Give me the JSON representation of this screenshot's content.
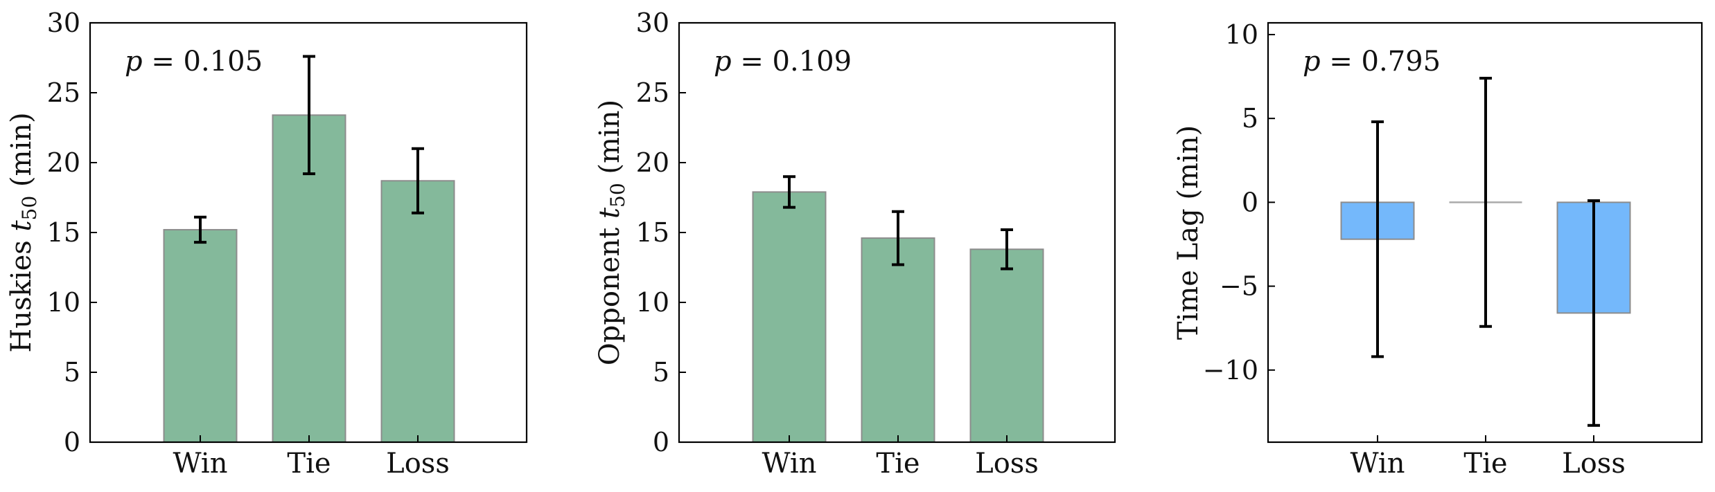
{
  "chart_data": [
    {
      "type": "bar",
      "categories": [
        "Win",
        "Tie",
        "Loss"
      ],
      "values": [
        15.2,
        23.4,
        18.7
      ],
      "errors": [
        0.9,
        4.2,
        2.3
      ],
      "ylabel": "Huskies t50 (min)",
      "ylabel_main": "Huskies ",
      "ylabel_var": "t",
      "ylabel_sub": "50",
      "ylabel_unit": " (min)",
      "annotation": {
        "p_text": "p",
        "eq": " = 0.105"
      },
      "ylim": [
        0,
        30
      ],
      "yticks": [
        0,
        5,
        10,
        15,
        20,
        25,
        30
      ],
      "ytick_labels": [
        "0",
        "5",
        "10",
        "15",
        "20",
        "25",
        "30"
      ],
      "bar_color": "#84b99b"
    },
    {
      "type": "bar",
      "categories": [
        "Win",
        "Tie",
        "Loss"
      ],
      "values": [
        17.9,
        14.6,
        13.8
      ],
      "errors": [
        1.1,
        1.9,
        1.4
      ],
      "ylabel": "Opponent t50 (min)",
      "ylabel_main": "Opponent ",
      "ylabel_var": "t",
      "ylabel_sub": "50",
      "ylabel_unit": " (min)",
      "annotation": {
        "p_text": "p",
        "eq": " = 0.109"
      },
      "ylim": [
        0,
        30
      ],
      "yticks": [
        0,
        5,
        10,
        15,
        20,
        25,
        30
      ],
      "ytick_labels": [
        "0",
        "5",
        "10",
        "15",
        "20",
        "25",
        "30"
      ],
      "bar_color": "#84b99b"
    },
    {
      "type": "bar",
      "categories": [
        "Win",
        "Tie",
        "Loss"
      ],
      "values": [
        -2.2,
        0,
        -6.6
      ],
      "errors": [
        7.0,
        7.4,
        6.7
      ],
      "ylabel": "Time Lag (min)",
      "ylabel_main": "Time Lag (min)",
      "ylabel_var": "",
      "ylabel_sub": "",
      "ylabel_unit": "",
      "annotation": {
        "p_text": "p",
        "eq": " = 0.795"
      },
      "ylim": [
        -14.3,
        10.7
      ],
      "yticks": [
        -10,
        -5,
        0,
        5,
        10
      ],
      "ytick_labels": [
        "−10",
        "−5",
        "0",
        "5",
        "10"
      ],
      "bar_color": "#74b8fb"
    }
  ]
}
